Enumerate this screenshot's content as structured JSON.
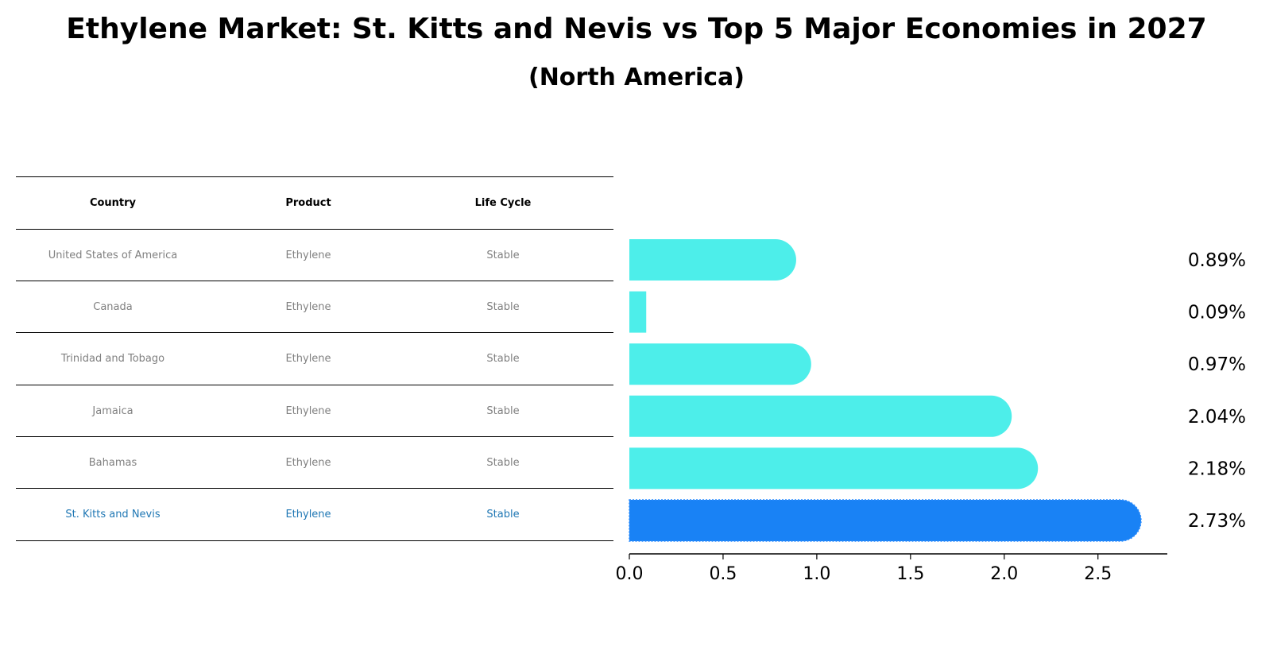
{
  "title": "Ethylene Market: St. Kitts and Nevis vs Top 5 Major Economies in 2027",
  "subtitle": "(North America)",
  "table": {
    "headers": [
      "Country",
      "Product",
      "Life Cycle"
    ],
    "rows": [
      [
        "United States of America",
        "Ethylene",
        "Stable"
      ],
      [
        "Canada",
        "Ethylene",
        "Stable"
      ],
      [
        "Trinidad and Tobago",
        "Ethylene",
        "Stable"
      ],
      [
        "Jamaica",
        "Ethylene",
        "Stable"
      ],
      [
        "Bahamas",
        "Ethylene",
        "Stable"
      ],
      [
        "St. Kitts and Nevis",
        "Ethylene",
        "Stable"
      ]
    ]
  },
  "chart_data": {
    "type": "bar",
    "orientation": "horizontal",
    "categories": [
      "United States of America",
      "Canada",
      "Trinidad and Tobago",
      "Jamaica",
      "Bahamas",
      "St. Kitts and Nevis"
    ],
    "values": [
      0.89,
      0.09,
      0.97,
      2.04,
      2.18,
      2.73
    ],
    "value_labels": [
      "0.89%",
      "0.09%",
      "0.97%",
      "2.04%",
      "2.18%",
      "2.73%"
    ],
    "highlight_index": 5,
    "xlim": [
      0,
      2.87
    ],
    "xticks": [
      0.0,
      0.5,
      1.0,
      1.5,
      2.0,
      2.5
    ],
    "xtick_labels": [
      "0.0",
      "0.5",
      "1.0",
      "1.5",
      "2.0",
      "2.5"
    ],
    "colors": {
      "bar": "#4deeea",
      "highlight": "#1982f5",
      "highlight_text": "#1f77b4"
    }
  }
}
